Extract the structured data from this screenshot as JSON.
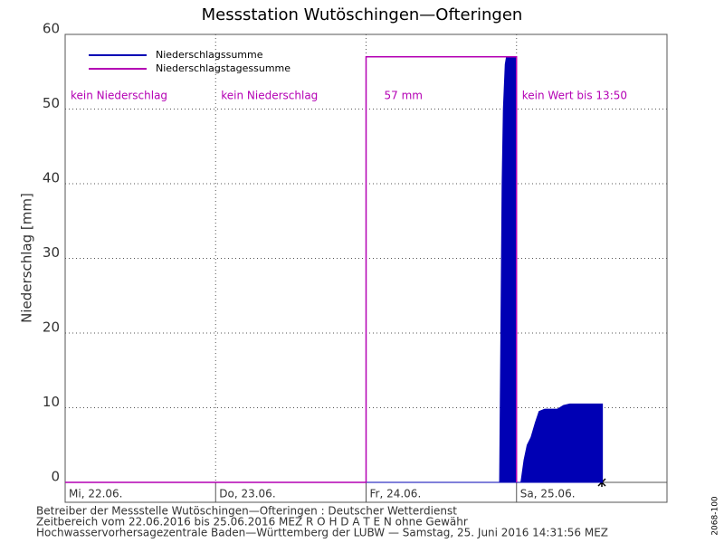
{
  "chart_data": {
    "type": "area-line",
    "title": "Messstation Wutöschingen—Ofteringen",
    "y_label": "Niederschlag [mm]",
    "xlim": [
      0,
      96
    ],
    "xticks": [
      {
        "value": 0,
        "label": "Mi, 22.06."
      },
      {
        "value": 24,
        "label": "Do, 23.06."
      },
      {
        "value": 48,
        "label": "Fr, 24.06."
      },
      {
        "value": 72,
        "label": "Sa, 25.06."
      }
    ],
    "ylim": [
      0,
      60
    ],
    "yticks": [
      0,
      10,
      20,
      30,
      40,
      50,
      60
    ],
    "grid": true,
    "series": [
      {
        "name": "Niederschlagssumme",
        "color": "#0000b4",
        "style": "area",
        "x": [
          0,
          69.3,
          69.5,
          69.7,
          69.9,
          70.2,
          70.4,
          72,
          72,
          72.7,
          73.2,
          73.7,
          74.3,
          75,
          75.6,
          76.5,
          78.5,
          79.5,
          80.5,
          85.7
        ],
        "values": [
          0,
          0,
          20,
          40,
          50,
          56,
          57,
          57,
          0,
          0,
          3,
          5,
          6,
          8,
          9.5,
          9.8,
          9.8,
          10.3,
          10.5,
          10.5
        ]
      },
      {
        "name": "Niederschlagstagessumme",
        "color": "#b400b4",
        "style": "line",
        "x": [
          0,
          48,
          48,
          72,
          72
        ],
        "values": [
          0,
          0,
          57,
          57,
          0
        ]
      }
    ],
    "annotations": [
      "kein Niederschlag",
      "kein Niederschlag",
      "57 mm",
      "kein Wert bis 13:50"
    ],
    "footer": [
      "Betreiber der Messstelle Wutöschingen—Ofteringen : Deutscher Wetterdienst",
      "Zeitbereich vom 22.06.2016 bis 25.06.2016    MEZ     R O H D A T E N ohne Gewähr",
      "Hochwasservorhersagezentrale Baden—Württemberg der LUBW — Samstag, 25. Juni 2016 14:31:56 MEZ"
    ],
    "code": "2068-100"
  }
}
